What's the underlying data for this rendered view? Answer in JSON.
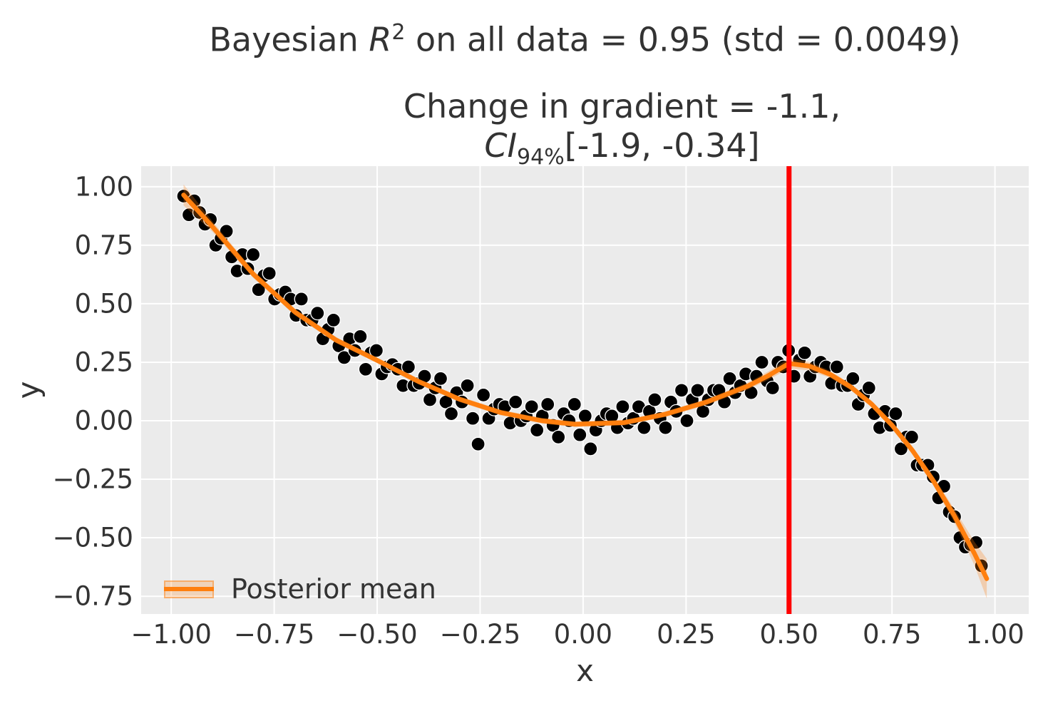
{
  "figure": {
    "title": {
      "prefix": "Bayesian ",
      "var": "R",
      "sup": "2",
      "suffix": " on all data = 0.95 (std = 0.0049)"
    },
    "subtitle": {
      "line1": "Change in gradient = -1.1,",
      "ci_var": "CI",
      "ci_sub": "94%",
      "ci_rest": "[-1.9, -0.34]"
    }
  },
  "chart_data": {
    "type": "scatter",
    "title": "Bayesian R^2 on all data = 0.95 (std = 0.0049)",
    "subtitle": "Change in gradient = -1.1, CI_94% [-1.9, -0.34]",
    "xlabel": "x",
    "ylabel": "y",
    "xlim": [
      -1.073,
      1.082
    ],
    "ylim": [
      -0.826,
      1.088
    ],
    "grid": true,
    "x_ticks": {
      "values": [
        -1.0,
        -0.75,
        -0.5,
        -0.25,
        0.0,
        0.25,
        0.5,
        0.75,
        1.0
      ],
      "labels": [
        "−1.00",
        "−0.75",
        "−0.50",
        "−0.25",
        "0.00",
        "0.25",
        "0.50",
        "0.75",
        "1.00"
      ]
    },
    "y_ticks": {
      "values": [
        1.0,
        0.75,
        0.5,
        0.25,
        0.0,
        -0.25,
        -0.5,
        -0.75
      ],
      "labels": [
        "1.00",
        "0.75",
        "0.50",
        "0.25",
        "0.00",
        "−0.25",
        "−0.50",
        "−0.75"
      ]
    },
    "legend": {
      "label": "Posterior mean",
      "position": "lower left"
    },
    "vline": {
      "x": 0.5,
      "color": "#ff0000",
      "width": 7
    },
    "colors": {
      "figure_bg": "#ffffff",
      "plot_bg": "#ebebeb",
      "grid": "#ffffff",
      "text": "#333333",
      "scatter": "#000000",
      "scatter_edge": "#ffffff",
      "line": "#ff7f0e",
      "band": "#ff7f0e",
      "band_alpha": 0.27
    },
    "series": [
      {
        "name": "observations",
        "type": "scatter",
        "marker_radius": 9.5,
        "points": [
          [
            -0.97,
            0.96
          ],
          [
            -0.957,
            0.88
          ],
          [
            -0.944,
            0.94
          ],
          [
            -0.931,
            0.89
          ],
          [
            -0.918,
            0.84
          ],
          [
            -0.905,
            0.86
          ],
          [
            -0.892,
            0.75
          ],
          [
            -0.879,
            0.78
          ],
          [
            -0.866,
            0.81
          ],
          [
            -0.853,
            0.7
          ],
          [
            -0.84,
            0.64
          ],
          [
            -0.827,
            0.71
          ],
          [
            -0.814,
            0.65
          ],
          [
            -0.801,
            0.71
          ],
          [
            -0.788,
            0.56
          ],
          [
            -0.775,
            0.62
          ],
          [
            -0.762,
            0.63
          ],
          [
            -0.749,
            0.52
          ],
          [
            -0.736,
            0.54
          ],
          [
            -0.723,
            0.55
          ],
          [
            -0.71,
            0.52
          ],
          [
            -0.697,
            0.45
          ],
          [
            -0.684,
            0.52
          ],
          [
            -0.671,
            0.43
          ],
          [
            -0.658,
            0.43
          ],
          [
            -0.645,
            0.46
          ],
          [
            -0.632,
            0.35
          ],
          [
            -0.619,
            0.39
          ],
          [
            -0.606,
            0.43
          ],
          [
            -0.593,
            0.32
          ],
          [
            -0.58,
            0.27
          ],
          [
            -0.567,
            0.35
          ],
          [
            -0.554,
            0.3
          ],
          [
            -0.541,
            0.36
          ],
          [
            -0.528,
            0.22
          ],
          [
            -0.515,
            0.29
          ],
          [
            -0.502,
            0.3
          ],
          [
            -0.489,
            0.2
          ],
          [
            -0.476,
            0.23
          ],
          [
            -0.463,
            0.24
          ],
          [
            -0.45,
            0.22
          ],
          [
            -0.437,
            0.15
          ],
          [
            -0.424,
            0.23
          ],
          [
            -0.411,
            0.15
          ],
          [
            -0.398,
            0.16
          ],
          [
            -0.385,
            0.19
          ],
          [
            -0.372,
            0.09
          ],
          [
            -0.359,
            0.14
          ],
          [
            -0.346,
            0.18
          ],
          [
            -0.333,
            0.08
          ],
          [
            -0.32,
            0.03
          ],
          [
            -0.307,
            0.12
          ],
          [
            -0.294,
            0.08
          ],
          [
            -0.281,
            0.15
          ],
          [
            -0.268,
            0.01
          ],
          [
            -0.255,
            -0.1
          ],
          [
            -0.242,
            0.11
          ],
          [
            -0.229,
            0.01
          ],
          [
            -0.216,
            0.05
          ],
          [
            -0.203,
            0.07
          ],
          [
            -0.19,
            0.06
          ],
          [
            -0.177,
            -0.01
          ],
          [
            -0.164,
            0.08
          ],
          [
            -0.151,
            0.0
          ],
          [
            -0.138,
            0.02
          ],
          [
            -0.125,
            0.06
          ],
          [
            -0.112,
            -0.04
          ],
          [
            -0.099,
            0.02
          ],
          [
            -0.086,
            0.07
          ],
          [
            -0.073,
            -0.02
          ],
          [
            -0.06,
            -0.07
          ],
          [
            -0.047,
            0.03
          ],
          [
            -0.034,
            0.0
          ],
          [
            -0.021,
            0.07
          ],
          [
            -0.008,
            -0.06
          ],
          [
            0.005,
            0.02
          ],
          [
            0.018,
            -0.12
          ],
          [
            0.031,
            -0.04
          ],
          [
            0.044,
            0.0
          ],
          [
            0.057,
            0.03
          ],
          [
            0.07,
            0.02
          ],
          [
            0.083,
            -0.03
          ],
          [
            0.096,
            0.06
          ],
          [
            0.109,
            -0.01
          ],
          [
            0.122,
            0.01
          ],
          [
            0.135,
            0.06
          ],
          [
            0.148,
            -0.03
          ],
          [
            0.161,
            0.04
          ],
          [
            0.174,
            0.09
          ],
          [
            0.187,
            0.01
          ],
          [
            0.2,
            -0.03
          ],
          [
            0.213,
            0.08
          ],
          [
            0.226,
            0.04
          ],
          [
            0.239,
            0.13
          ],
          [
            0.252,
            0.0
          ],
          [
            0.265,
            0.09
          ],
          [
            0.278,
            0.13
          ],
          [
            0.291,
            0.04
          ],
          [
            0.304,
            0.09
          ],
          [
            0.317,
            0.13
          ],
          [
            0.33,
            0.13
          ],
          [
            0.343,
            0.08
          ],
          [
            0.356,
            0.18
          ],
          [
            0.369,
            0.12
          ],
          [
            0.382,
            0.15
          ],
          [
            0.395,
            0.2
          ],
          [
            0.408,
            0.12
          ],
          [
            0.421,
            0.19
          ],
          [
            0.434,
            0.25
          ],
          [
            0.447,
            0.17
          ],
          [
            0.46,
            0.14
          ],
          [
            0.473,
            0.25
          ],
          [
            0.486,
            0.23
          ],
          [
            0.499,
            0.3
          ],
          [
            0.512,
            0.19
          ],
          [
            0.525,
            0.26
          ],
          [
            0.538,
            0.29
          ],
          [
            0.551,
            0.19
          ],
          [
            0.564,
            0.23
          ],
          [
            0.577,
            0.25
          ],
          [
            0.59,
            0.23
          ],
          [
            0.603,
            0.16
          ],
          [
            0.616,
            0.23
          ],
          [
            0.629,
            0.15
          ],
          [
            0.642,
            0.15
          ],
          [
            0.655,
            0.18
          ],
          [
            0.668,
            0.07
          ],
          [
            0.681,
            0.11
          ],
          [
            0.694,
            0.14
          ],
          [
            0.707,
            0.03
          ],
          [
            0.72,
            -0.03
          ],
          [
            0.733,
            0.04
          ],
          [
            0.746,
            -0.02
          ],
          [
            0.759,
            0.03
          ],
          [
            0.772,
            -0.12
          ],
          [
            0.785,
            -0.07
          ],
          [
            0.798,
            -0.07
          ],
          [
            0.811,
            -0.19
          ],
          [
            0.824,
            -0.19
          ],
          [
            0.837,
            -0.19
          ],
          [
            0.85,
            -0.24
          ],
          [
            0.863,
            -0.33
          ],
          [
            0.876,
            -0.28
          ],
          [
            0.889,
            -0.39
          ],
          [
            0.902,
            -0.41
          ],
          [
            0.915,
            -0.5
          ],
          [
            0.928,
            -0.54
          ],
          [
            0.941,
            -0.53
          ],
          [
            0.954,
            -0.52
          ],
          [
            0.967,
            -0.62
          ]
        ]
      },
      {
        "name": "Posterior mean",
        "type": "line",
        "line_width": 6.5,
        "x": [
          -0.97,
          -0.9,
          -0.8,
          -0.7,
          -0.6,
          -0.5,
          -0.4,
          -0.3,
          -0.2,
          -0.1,
          -0.02,
          0.1,
          0.2,
          0.3,
          0.4,
          0.45,
          0.5,
          0.55,
          0.6,
          0.65,
          0.7,
          0.75,
          0.8,
          0.85,
          0.9,
          0.95,
          0.98
        ],
        "y": [
          0.965,
          0.83,
          0.625,
          0.465,
          0.345,
          0.258,
          0.168,
          0.092,
          0.035,
          0.0,
          -0.015,
          -0.008,
          0.028,
          0.08,
          0.148,
          0.193,
          0.245,
          0.233,
          0.198,
          0.144,
          0.072,
          -0.019,
          -0.128,
          -0.256,
          -0.402,
          -0.567,
          -0.675
        ],
        "band_halfwidth": [
          0.045,
          0.022,
          0.016,
          0.014,
          0.013,
          0.012,
          0.012,
          0.012,
          0.012,
          0.012,
          0.012,
          0.012,
          0.012,
          0.013,
          0.015,
          0.018,
          0.022,
          0.018,
          0.015,
          0.014,
          0.014,
          0.015,
          0.017,
          0.02,
          0.028,
          0.05,
          0.085
        ]
      }
    ]
  }
}
